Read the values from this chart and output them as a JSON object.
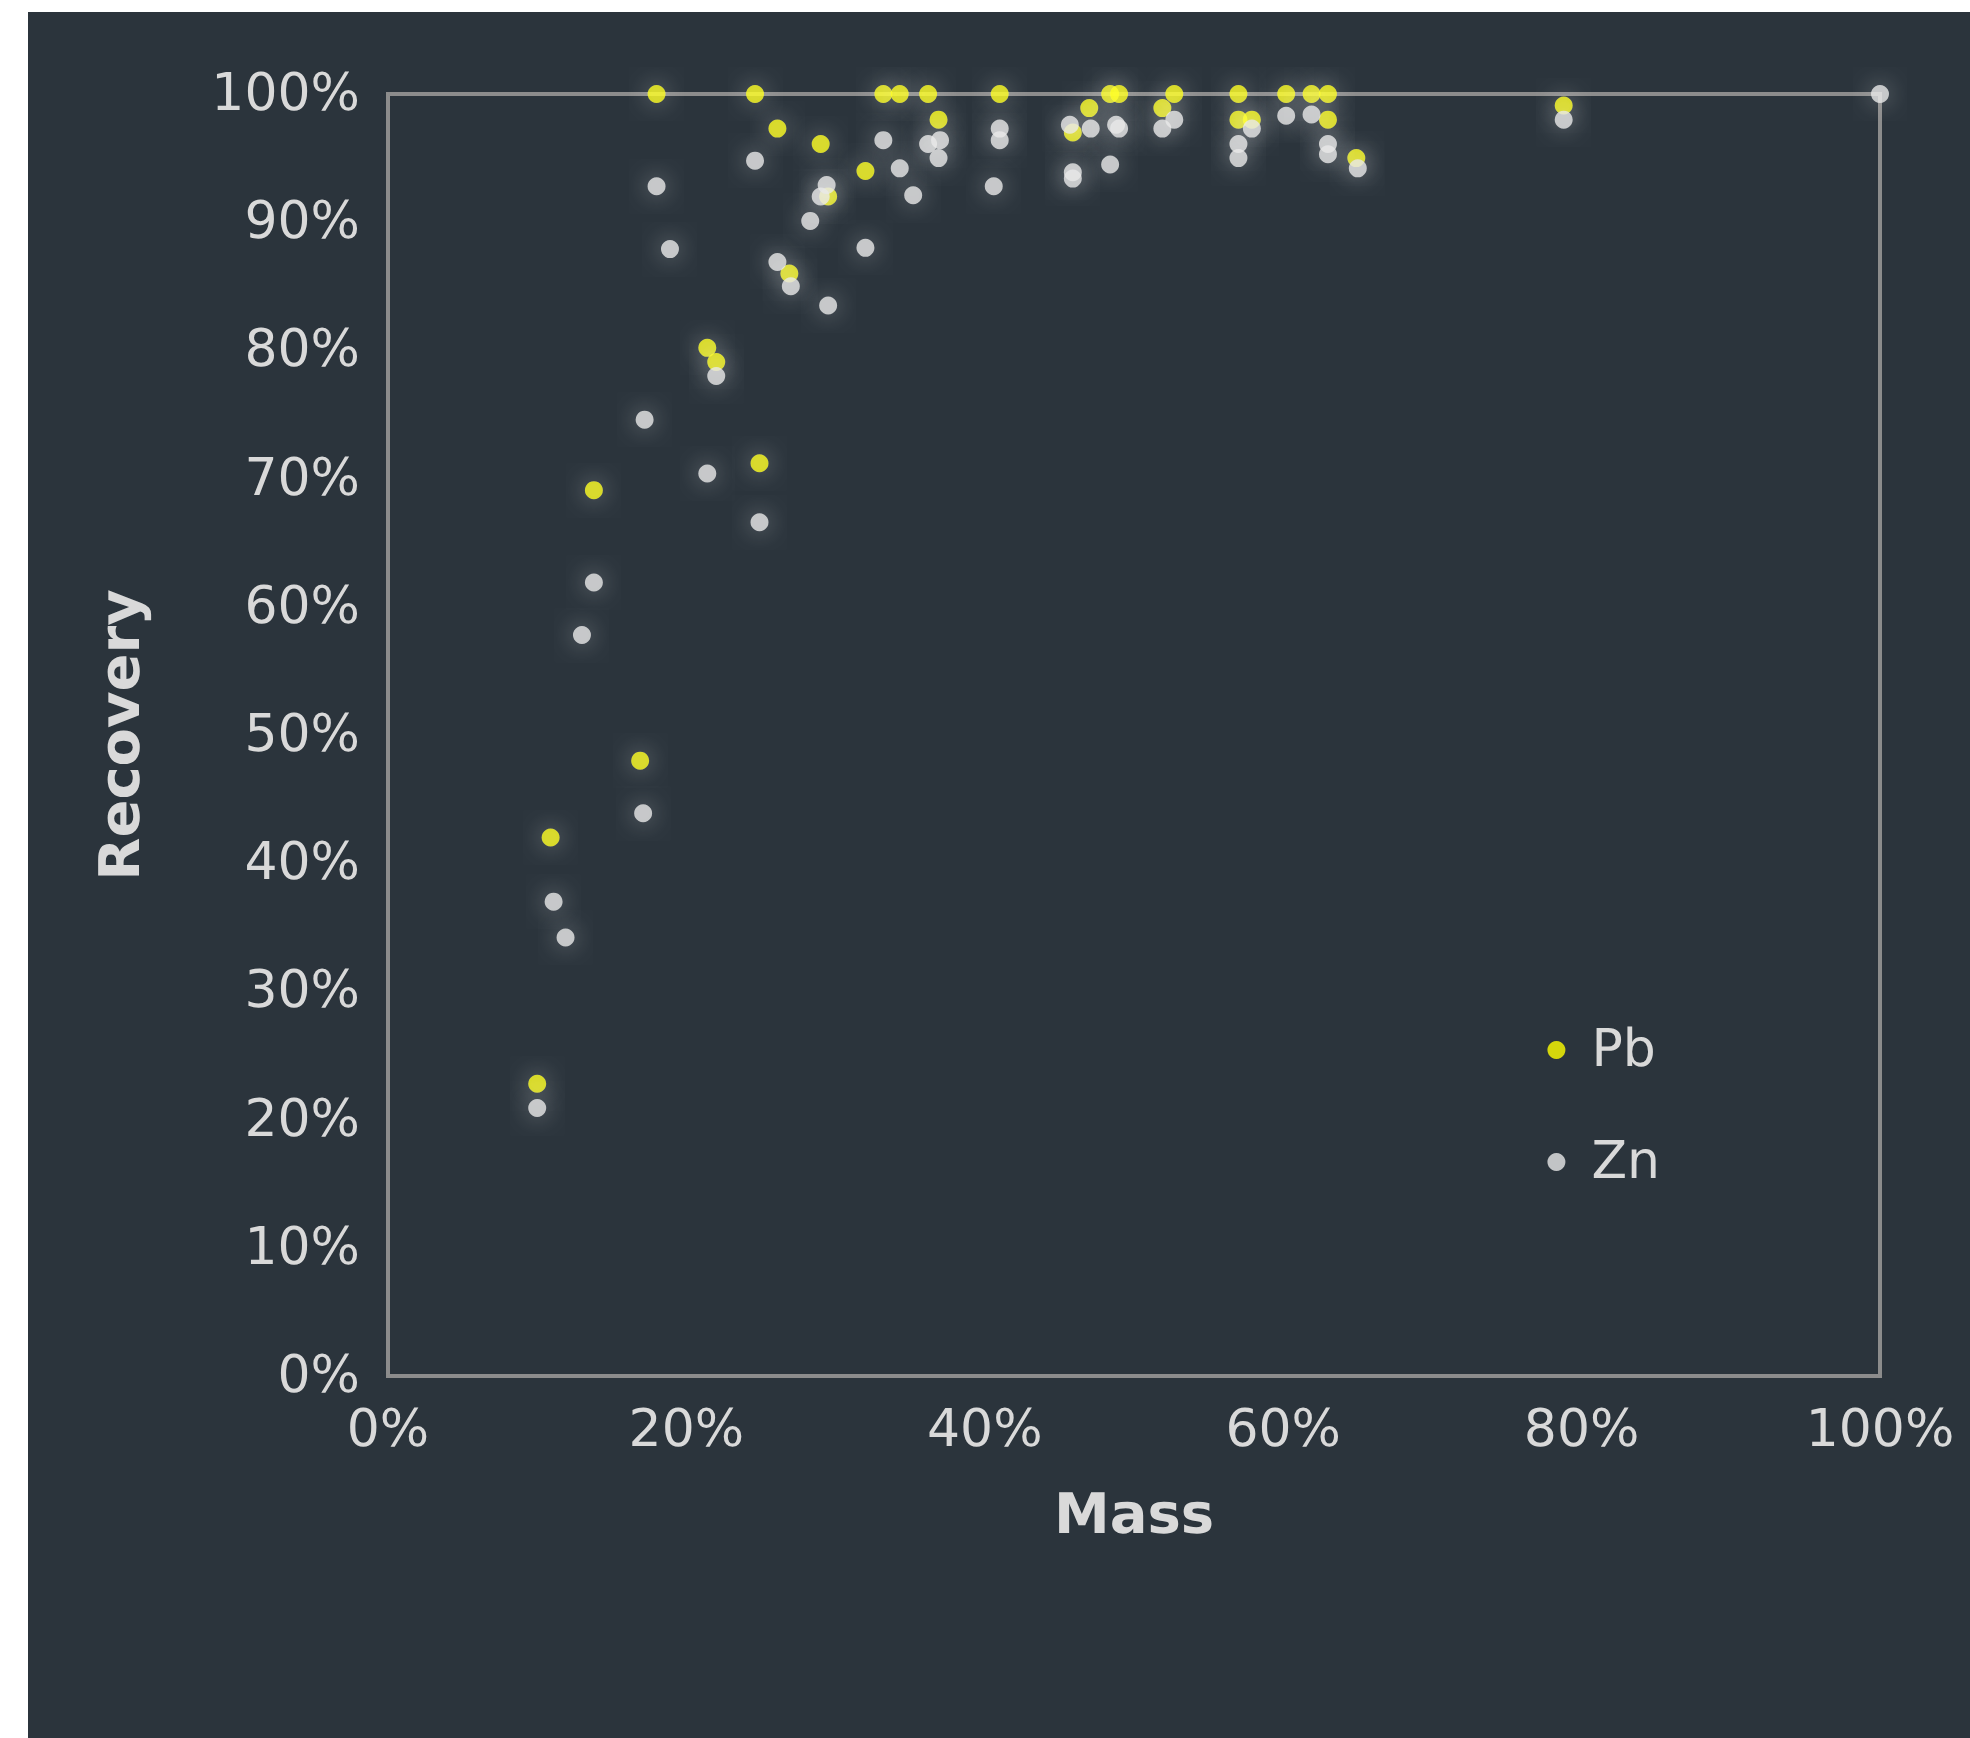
{
  "chart_data": {
    "type": "scatter",
    "xlabel": "Mass",
    "ylabel": "Recovery",
    "xlim": [
      0,
      100
    ],
    "ylim": [
      0,
      100
    ],
    "xticks": [
      {
        "value": 0,
        "label": "0%"
      },
      {
        "value": 20,
        "label": "20%"
      },
      {
        "value": 40,
        "label": "40%"
      },
      {
        "value": 60,
        "label": "60%"
      },
      {
        "value": 80,
        "label": "80%"
      },
      {
        "value": 100,
        "label": "100%"
      }
    ],
    "yticks": [
      {
        "value": 0,
        "label": "0%"
      },
      {
        "value": 10,
        "label": "10%"
      },
      {
        "value": 20,
        "label": "20%"
      },
      {
        "value": 30,
        "label": "30%"
      },
      {
        "value": 40,
        "label": "40%"
      },
      {
        "value": 50,
        "label": "50%"
      },
      {
        "value": 60,
        "label": "60%"
      },
      {
        "value": 70,
        "label": "70%"
      },
      {
        "value": 80,
        "label": "80%"
      },
      {
        "value": 90,
        "label": "90%"
      },
      {
        "value": 100,
        "label": "100%"
      }
    ],
    "grid": false,
    "legend": "bottom right",
    "marker": "circle",
    "series": [
      {
        "name": "Pb",
        "color": "#ffff00",
        "x": [
          10.0,
          10.9,
          13.8,
          16.9,
          18.0,
          21.4,
          22.0,
          24.6,
          24.9,
          26.1,
          26.9,
          29.0,
          29.5,
          32.0,
          33.2,
          34.3,
          36.2,
          36.9,
          41.0,
          45.9,
          47.0,
          48.4,
          49.0,
          51.9,
          52.7,
          57.0,
          57.0,
          57.9,
          60.2,
          61.9,
          63.0,
          63.0,
          64.9,
          78.8
        ],
        "values": [
          22.8,
          42.0,
          69.1,
          48.0,
          100,
          80.2,
          79.1,
          100,
          71.2,
          97.3,
          86.0,
          96.1,
          92.0,
          94.0,
          100,
          100,
          100,
          98.0,
          100,
          97.0,
          98.9,
          100,
          100,
          98.9,
          100,
          100,
          98.0,
          98.0,
          100,
          100,
          100,
          98.0,
          95.0,
          99.1
        ]
      },
      {
        "name": "Zn",
        "color": "#e8e8e8",
        "x": [
          10.0,
          11.1,
          11.9,
          13.0,
          13.8,
          17.2,
          17.1,
          18.0,
          18.9,
          21.4,
          22.0,
          24.6,
          24.9,
          26.1,
          27.0,
          28.3,
          29.0,
          29.4,
          29.5,
          32.0,
          33.2,
          34.3,
          35.2,
          36.2,
          37.0,
          36.9,
          40.6,
          41.0,
          41.0,
          45.7,
          45.9,
          45.9,
          47.1,
          48.4,
          48.8,
          49.0,
          51.9,
          52.7,
          57.0,
          57.0,
          57.9,
          60.2,
          61.9,
          63.0,
          63.0,
          65.0,
          78.8,
          100
        ],
        "values": [
          20.9,
          37.0,
          34.2,
          57.8,
          61.9,
          74.6,
          43.9,
          92.8,
          87.9,
          70.4,
          78.0,
          94.8,
          66.6,
          86.9,
          85.0,
          90.1,
          92.0,
          92.9,
          83.5,
          88.0,
          96.4,
          94.2,
          92.1,
          96.1,
          96.4,
          95.0,
          92.8,
          97.3,
          96.4,
          97.6,
          93.9,
          93.4,
          97.3,
          94.5,
          97.6,
          97.3,
          97.3,
          98.0,
          96.1,
          95.0,
          97.3,
          98.3,
          98.4,
          96.1,
          95.3,
          94.2,
          98.0,
          100
        ]
      }
    ]
  }
}
